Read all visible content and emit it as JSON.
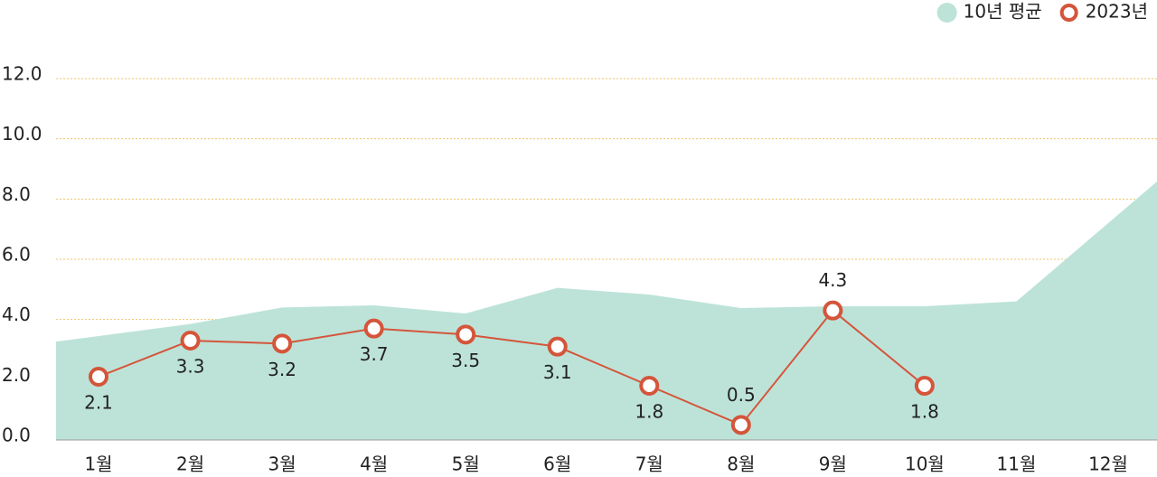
{
  "chart_data": {
    "type": "line",
    "categories": [
      "1월",
      "2월",
      "3월",
      "4월",
      "5월",
      "6월",
      "7월",
      "8월",
      "9월",
      "10월",
      "11월",
      "12월"
    ],
    "series": [
      {
        "name": "10년 평균",
        "type": "area",
        "color": "#bde3d8",
        "values": [
          3.45,
          3.85,
          4.4,
          4.47,
          4.2,
          5.05,
          4.83,
          4.38,
          4.44,
          4.44,
          4.6,
          7.2
        ]
      },
      {
        "name": "2023년",
        "type": "line",
        "color": "#d4553a",
        "values": [
          2.1,
          3.3,
          3.2,
          3.7,
          3.5,
          3.1,
          1.8,
          0.5,
          4.3,
          1.8,
          null,
          null
        ]
      }
    ],
    "ylim": [
      0,
      12
    ],
    "yticks": [
      {
        "value": 0,
        "label": "0.0"
      },
      {
        "value": 2,
        "label": "2.0"
      },
      {
        "value": 4,
        "label": "4.0"
      },
      {
        "value": 6,
        "label": "6.0"
      },
      {
        "value": 8,
        "label": "8.0"
      },
      {
        "value": 10,
        "label": "10.0"
      },
      {
        "value": 12,
        "label": "12.0"
      }
    ],
    "grid": true,
    "legend": "top-right"
  }
}
